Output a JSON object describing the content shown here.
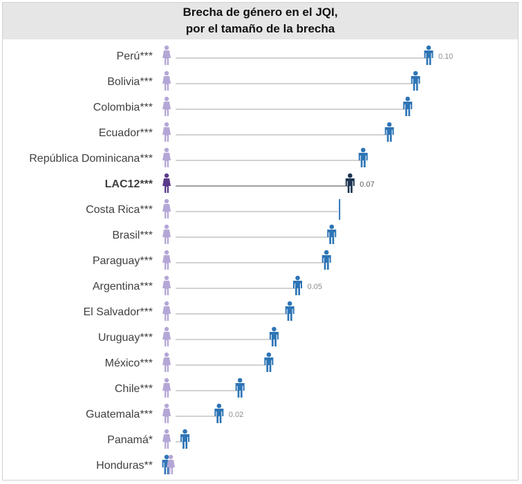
{
  "chart_data": {
    "type": "dot",
    "title_line1": "Brecha de género en el JQI,",
    "title_line2": "por el tamaño de la brecha",
    "xlim": [
      0,
      0.105
    ],
    "categories": [
      {
        "label": "Perú***",
        "value": 0.1,
        "data_label": "0.10"
      },
      {
        "label": "Bolivia***",
        "value": 0.095,
        "data_label": ""
      },
      {
        "label": "Colombia***",
        "value": 0.092,
        "data_label": ""
      },
      {
        "label": "Ecuador***",
        "value": 0.085,
        "data_label": ""
      },
      {
        "label": "República Dominicana***",
        "value": 0.075,
        "data_label": ""
      },
      {
        "label": "LAC12***",
        "value": 0.07,
        "data_label": "0.07",
        "highlight": true
      },
      {
        "label": "Costa Rica***",
        "value": 0.066,
        "data_label": ""
      },
      {
        "label": "Brasil***",
        "value": 0.063,
        "data_label": ""
      },
      {
        "label": "Paraguay***",
        "value": 0.061,
        "data_label": ""
      },
      {
        "label": "Argentina***",
        "value": 0.05,
        "data_label": "0.05"
      },
      {
        "label": "El Salvador***",
        "value": 0.047,
        "data_label": ""
      },
      {
        "label": "Uruguay***",
        "value": 0.041,
        "data_label": ""
      },
      {
        "label": "México***",
        "value": 0.039,
        "data_label": ""
      },
      {
        "label": "Chile***",
        "value": 0.028,
        "data_label": ""
      },
      {
        "label": "Guatemala***",
        "value": 0.02,
        "data_label": "0.02"
      },
      {
        "label": "Panamá*",
        "value": 0.007,
        "data_label": ""
      },
      {
        "label": "Honduras**",
        "value": 0.0,
        "data_label": ""
      }
    ],
    "colors": {
      "female": "#b4a7d6",
      "female_highlight": "#5b3a8c",
      "male": "#2e75b6",
      "male_highlight": "#1f3552",
      "line": "#a6a6a6",
      "line_highlight": "#404040"
    }
  }
}
